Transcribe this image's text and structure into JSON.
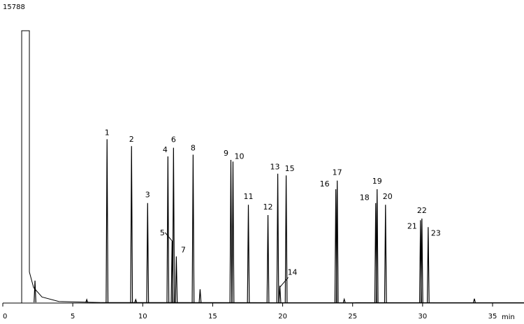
{
  "chart_data": {
    "type": "line",
    "title": "",
    "xlabel": "",
    "ylabel": "",
    "x_unit": "min",
    "y_max_label": "15788",
    "xlim": [
      0,
      37
    ],
    "ylim": [
      0,
      15788
    ],
    "x_ticks": [
      {
        "value": 0,
        "label": "0"
      },
      {
        "value": 5,
        "label": "5"
      },
      {
        "value": 10,
        "label": "10"
      },
      {
        "value": 15,
        "label": "15"
      },
      {
        "value": 20,
        "label": "20"
      },
      {
        "value": 25,
        "label": "25"
      },
      {
        "value": 30,
        "label": "30"
      },
      {
        "value": 35,
        "label": "35"
      }
    ],
    "solvent_peak": {
      "start": 1.35,
      "end": 1.9,
      "value": 15788
    },
    "minor_peaks": [
      {
        "x": 2.3,
        "value": 1300
      },
      {
        "x": 6.0,
        "value": 200
      },
      {
        "x": 9.5,
        "value": 200
      },
      {
        "x": 14.1,
        "value": 800
      },
      {
        "x": 24.4,
        "value": 220
      },
      {
        "x": 33.7,
        "value": 250
      }
    ],
    "peaks": [
      {
        "label": "1",
        "x": 7.45,
        "value": 9500
      },
      {
        "label": "2",
        "x": 9.2,
        "value": 9100
      },
      {
        "label": "3",
        "x": 10.35,
        "value": 5800
      },
      {
        "label": "4",
        "x": 11.8,
        "value": 8500
      },
      {
        "label": "5",
        "x": 12.1,
        "value": 3600
      },
      {
        "label": "6",
        "x": 12.2,
        "value": 9000
      },
      {
        "label": "7",
        "x": 12.4,
        "value": 2700
      },
      {
        "label": "8",
        "x": 13.6,
        "value": 8600
      },
      {
        "label": "9",
        "x": 16.3,
        "value": 8300
      },
      {
        "label": "10",
        "x": 16.45,
        "value": 8200
      },
      {
        "label": "11",
        "x": 17.55,
        "value": 5700
      },
      {
        "label": "12",
        "x": 18.95,
        "value": 5100
      },
      {
        "label": "13",
        "x": 19.65,
        "value": 7500
      },
      {
        "label": "14",
        "x": 19.8,
        "value": 1000
      },
      {
        "label": "15",
        "x": 20.25,
        "value": 7400
      },
      {
        "label": "16",
        "x": 23.8,
        "value": 6600
      },
      {
        "label": "17",
        "x": 23.9,
        "value": 7100
      },
      {
        "label": "18",
        "x": 26.65,
        "value": 5800
      },
      {
        "label": "19",
        "x": 26.75,
        "value": 6600
      },
      {
        "label": "20",
        "x": 27.35,
        "value": 5700
      },
      {
        "label": "21",
        "x": 29.85,
        "value": 4800
      },
      {
        "label": "22",
        "x": 29.95,
        "value": 4900
      },
      {
        "label": "23",
        "x": 30.4,
        "value": 4400
      }
    ],
    "line_color": "#000000",
    "grid": false
  }
}
